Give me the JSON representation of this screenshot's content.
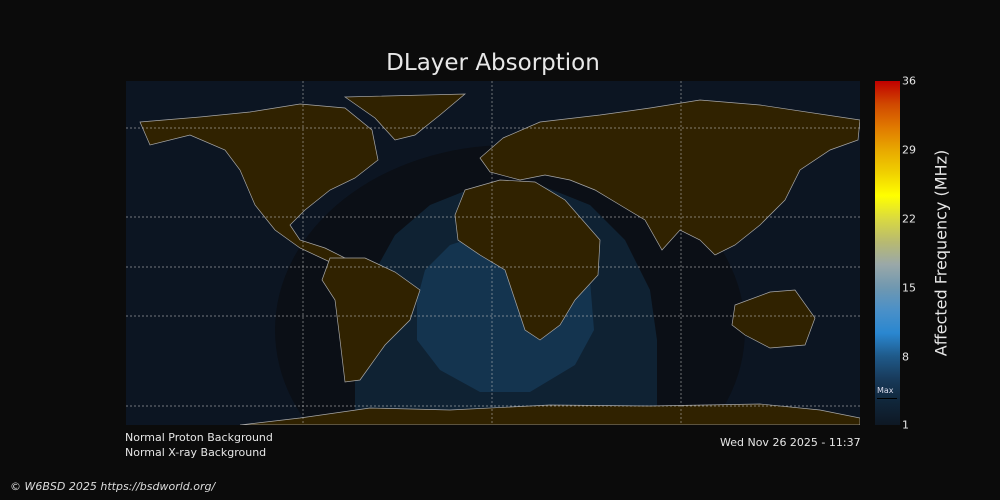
{
  "title": "DLayer Absorption",
  "colorbar": {
    "label": "Affected Frequency (MHz)",
    "ticks": [
      "36",
      "29",
      "22",
      "15",
      "8",
      "1"
    ],
    "range": [
      1,
      36
    ],
    "marker_label": "Max",
    "colors": [
      "#0e1824",
      "#10263a",
      "#183a5a",
      "#1f5a8a",
      "#2a87d0",
      "#4a90c8",
      "#7098b0",
      "#9aa8a8",
      "#b8ba70",
      "#dada40",
      "#ffff00",
      "#f0d000",
      "#e8a800",
      "#e07800",
      "#d04800",
      "#c00000"
    ]
  },
  "status": {
    "proton": "Normal Proton Background",
    "xray": "Normal X-ray Background",
    "timestamp": "Wed Nov 26 2025 - 11:37"
  },
  "copyright": "© W6BSD 2025 https://bsdworld.org/",
  "colors": {
    "background": "#0b0b0b",
    "ocean": "#0c1522",
    "land": "#302200",
    "absorption_low": "#0f2233",
    "absorption_mid": "#14344f"
  }
}
